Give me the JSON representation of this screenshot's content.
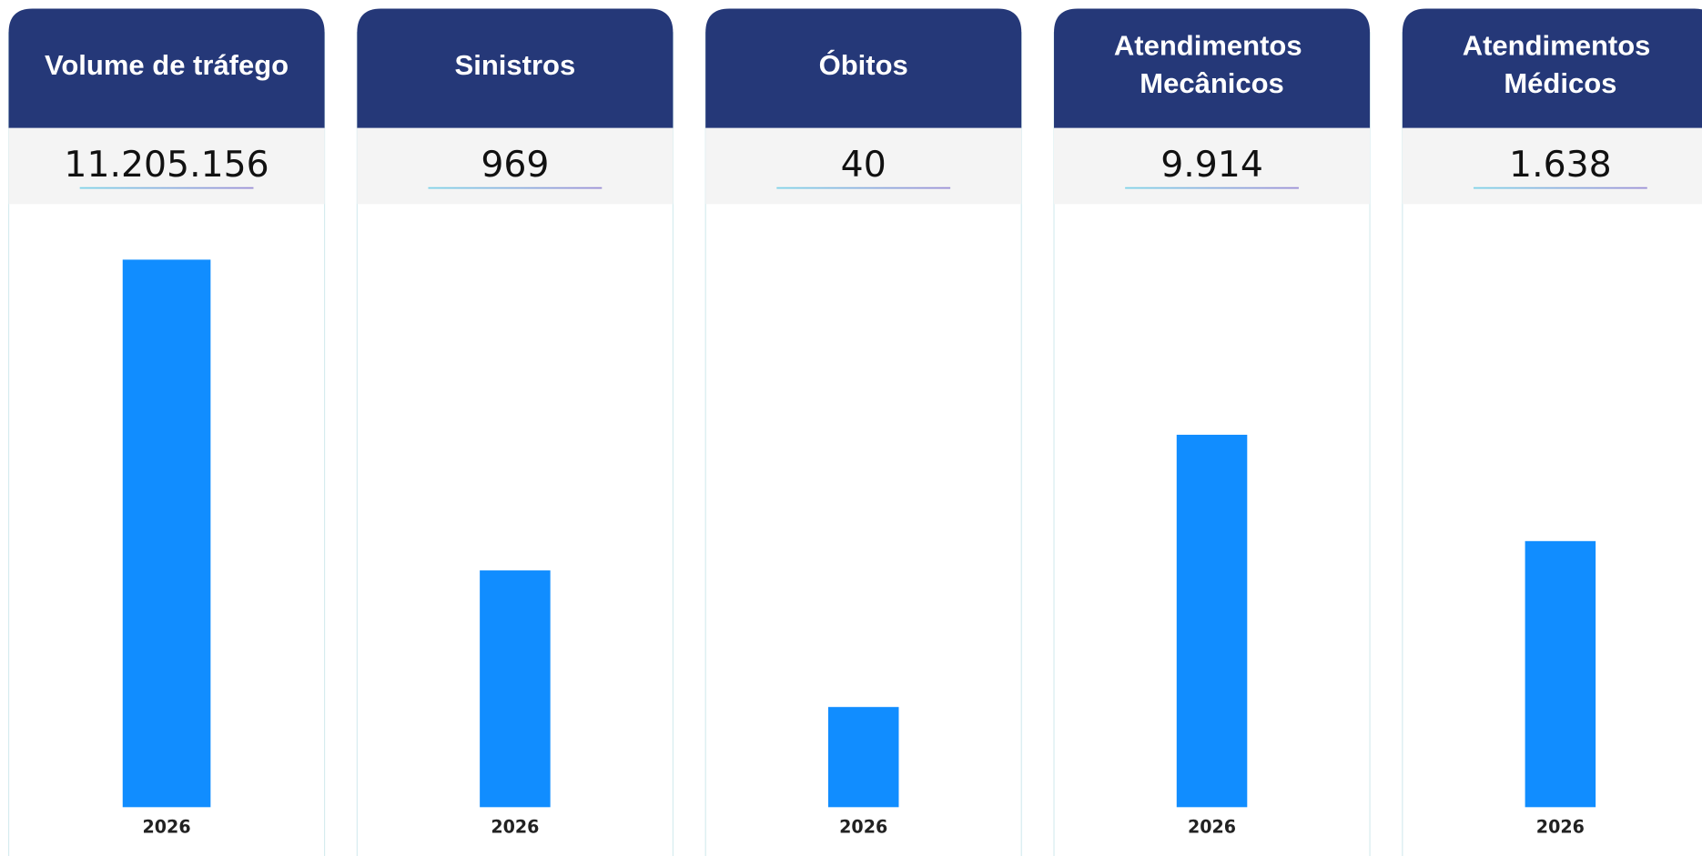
{
  "chart_data": [
    {
      "type": "bar",
      "title": "Volume de tráfego",
      "categories": [
        "2026"
      ],
      "values": [
        11205156
      ],
      "value_labels": [
        "11.205.156"
      ],
      "color": "#118dff",
      "ylim": [
        0,
        12300000
      ]
    },
    {
      "type": "bar",
      "title": "Sinistros",
      "categories": [
        "2026"
      ],
      "values": [
        969
      ],
      "value_labels": [
        "969"
      ],
      "color": "#118dff",
      "ylim": [
        0,
        2460
      ]
    },
    {
      "type": "bar",
      "title": "Óbitos",
      "categories": [
        "2026"
      ],
      "values": [
        40
      ],
      "value_labels": [
        "40"
      ],
      "color": "#118dff",
      "ylim": [
        0,
        240
      ]
    },
    {
      "type": "bar",
      "title": "Atendimentos Mecânicos",
      "categories": [
        "2026"
      ],
      "values": [
        9914
      ],
      "value_labels": [
        "9.914"
      ],
      "color": "#118dff",
      "ylim": [
        0,
        16000
      ]
    },
    {
      "type": "bar",
      "title": "Atendimentos Médicos",
      "categories": [
        "2026"
      ],
      "values": [
        1638
      ],
      "value_labels": [
        "1.638"
      ],
      "color": "#118dff",
      "ylim": [
        0,
        3700
      ]
    }
  ]
}
